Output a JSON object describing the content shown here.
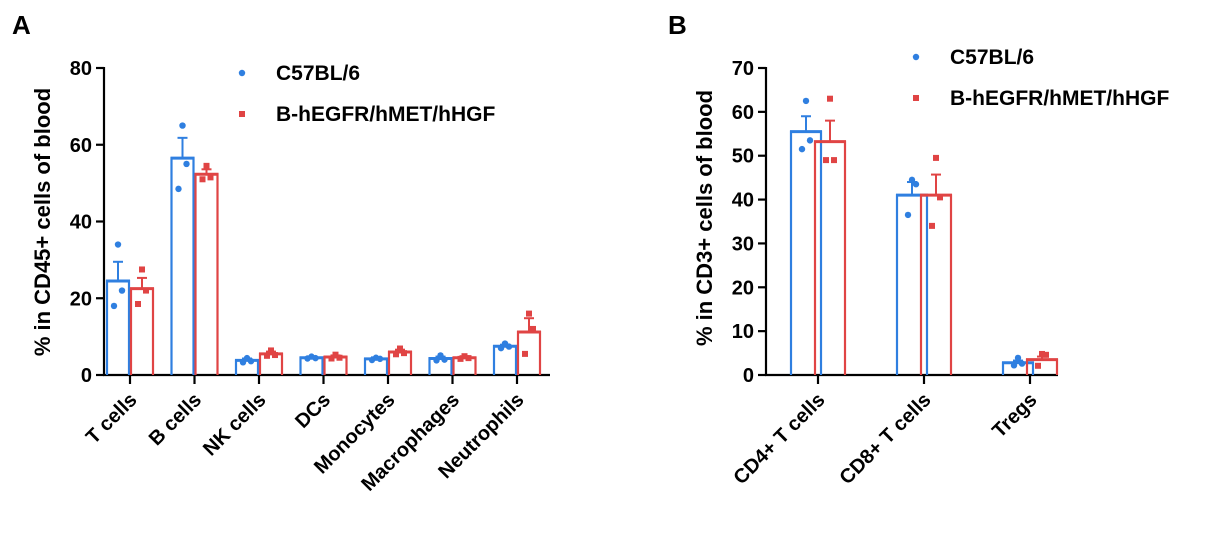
{
  "colors": {
    "C57BL/6": "#2f7fe0",
    "B-hEGFR/hMET/hHGF": "#e04444"
  },
  "legend": [
    "C57BL/6",
    "B-hEGFR/hMET/hHGF"
  ],
  "chart_data": [
    {
      "panel": "A",
      "type": "bar",
      "ylabel": "% in CD45+ cells of blood",
      "xlabel": "",
      "ylim": [
        0,
        80
      ],
      "yticks": [
        0,
        20,
        40,
        60,
        80
      ],
      "legend_position": "top-right",
      "categories": [
        "T cells",
        "B cells",
        "NK cells",
        "DCs",
        "Monocytes",
        "Macrophages",
        "Neutrophils"
      ],
      "series": [
        {
          "name": "C57BL/6",
          "values": [
            24.5,
            56.5,
            3.8,
            4.5,
            4.2,
            4.3,
            7.5
          ],
          "sem": [
            5.0,
            5.3,
            0.5,
            0.3,
            0.4,
            0.5,
            0.4
          ],
          "points": [
            [
              34,
              22,
              18
            ],
            [
              65,
              55,
              48.5
            ],
            [
              4.4,
              3.6,
              3.3
            ],
            [
              4.8,
              4.4,
              4.3
            ],
            [
              4.5,
              4.2,
              3.9
            ],
            [
              5.1,
              4.0,
              3.8
            ],
            [
              8.2,
              7.4,
              7.0
            ]
          ]
        },
        {
          "name": "B-hEGFR/hMET/hHGF",
          "values": [
            22.5,
            52.3,
            5.5,
            4.7,
            6.0,
            4.5,
            11.2
          ],
          "sem": [
            2.8,
            1.3,
            0.6,
            0.4,
            0.6,
            0.4,
            3.6
          ],
          "points": [
            [
              27.5,
              22,
              18.5
            ],
            [
              54.5,
              51.5,
              51
            ],
            [
              6.4,
              5.2,
              5.0
            ],
            [
              5.3,
              4.5,
              4.3
            ],
            [
              6.9,
              5.7,
              5.4
            ],
            [
              4.9,
              4.4,
              4.2
            ],
            [
              16,
              12,
              5.5
            ]
          ]
        }
      ]
    },
    {
      "panel": "B",
      "type": "bar",
      "ylabel": "% in CD3+ cells of blood",
      "xlabel": "",
      "ylim": [
        0,
        70
      ],
      "yticks": [
        0,
        10,
        20,
        30,
        40,
        50,
        60,
        70
      ],
      "legend_position": "top-right",
      "categories": [
        "CD4+ T cells",
        "CD8+ T cells",
        "Tregs"
      ],
      "series": [
        {
          "name": "C57BL/6",
          "values": [
            55.5,
            41.0,
            2.8
          ],
          "sem": [
            3.5,
            3.0,
            0.5
          ],
          "points": [
            [
              62.5,
              53.5,
              51.5
            ],
            [
              44.5,
              43.5,
              36.5
            ],
            [
              3.9,
              2.6,
              2.2
            ]
          ]
        },
        {
          "name": "B-hEGFR/hMET/hHGF",
          "values": [
            53.2,
            41.0,
            3.5
          ],
          "sem": [
            4.8,
            4.7,
            0.7
          ],
          "points": [
            [
              63,
              49,
              49
            ],
            [
              49.5,
              40.5,
              34
            ],
            [
              4.8,
              4.6,
              2.1
            ]
          ]
        }
      ]
    }
  ]
}
